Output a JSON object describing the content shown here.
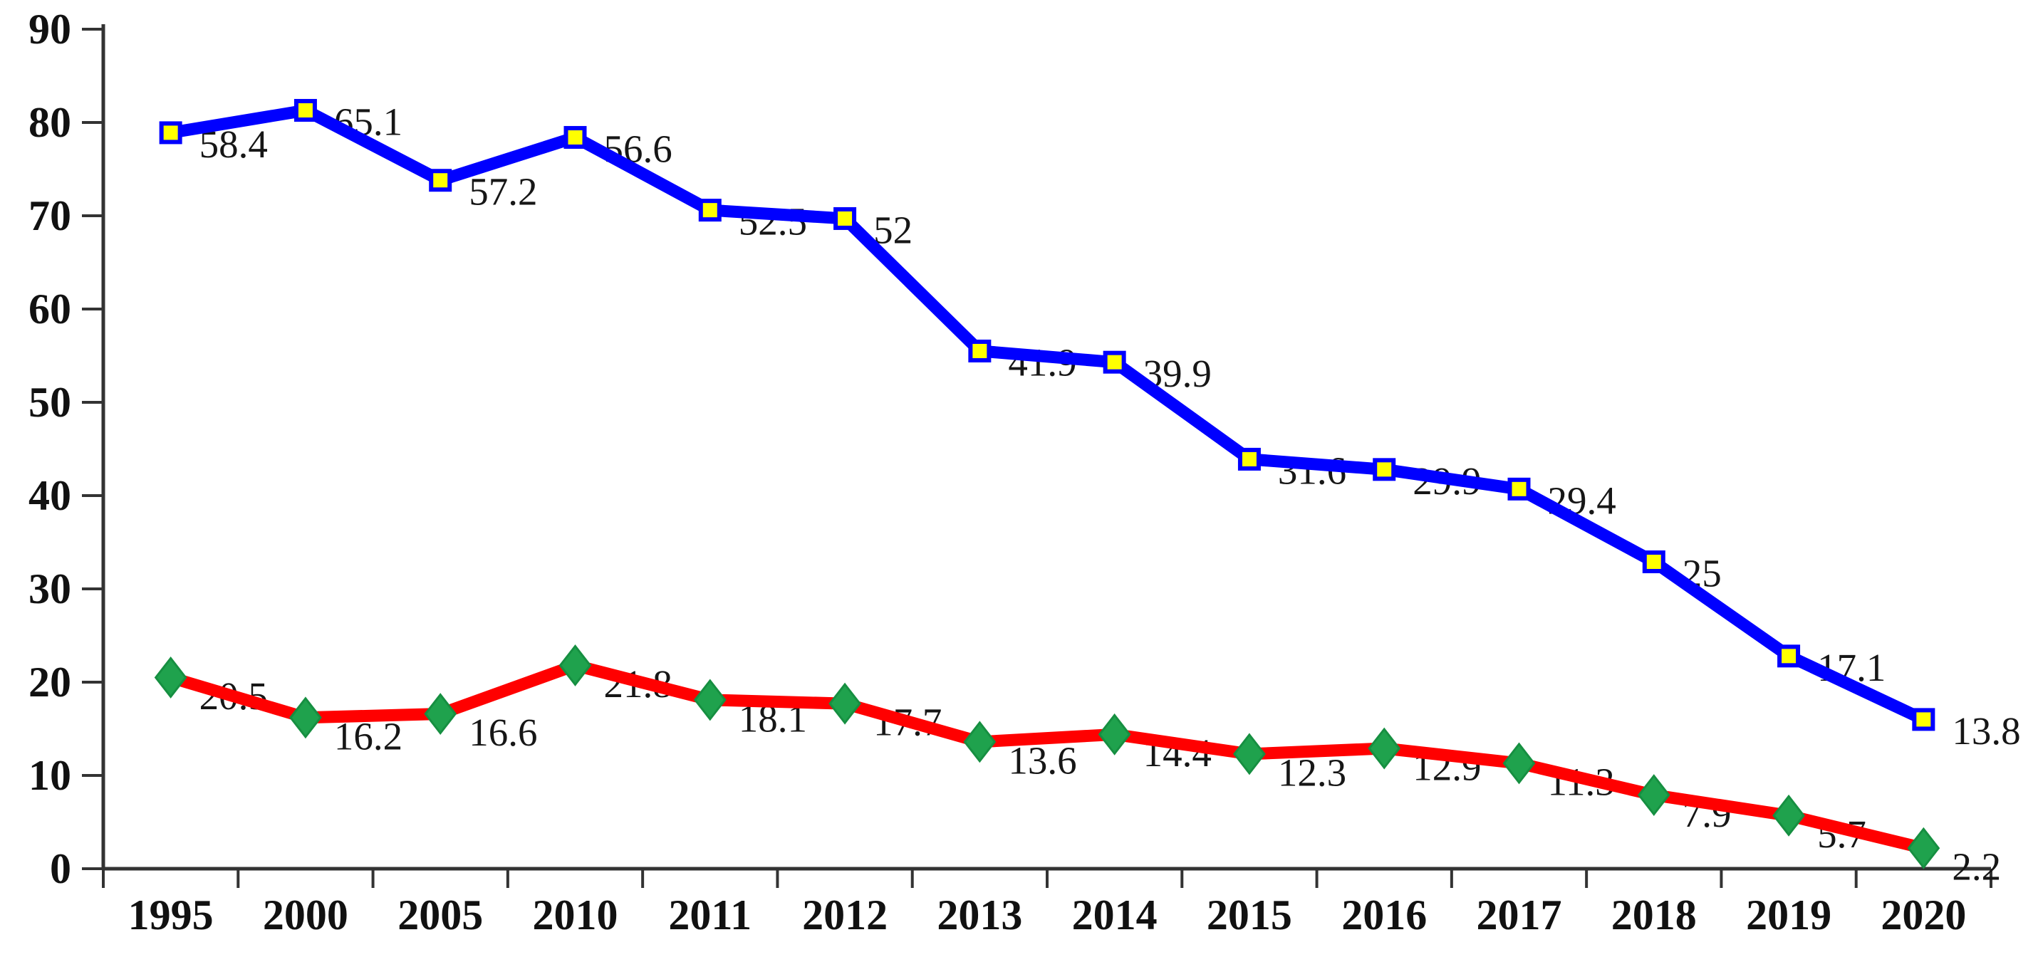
{
  "chart_data": {
    "type": "line",
    "variant": "stacked-line-with-markers-and-data-labels",
    "title": "",
    "xlabel": "",
    "ylabel": "",
    "categories": [
      "1995",
      "2000",
      "2005",
      "2010",
      "2011",
      "2012",
      "2013",
      "2014",
      "2015",
      "2016",
      "2017",
      "2018",
      "2019",
      "2020"
    ],
    "series": [
      {
        "name": "red-diamond-series",
        "line_color": "#FF0000",
        "marker": "diamond",
        "marker_color": "#1FA24D",
        "marker_edge_color": "#168F41",
        "values": [
          20.5,
          16.2,
          16.6,
          21.8,
          18.1,
          17.7,
          13.6,
          14.4,
          12.3,
          12.9,
          11.3,
          7.9,
          5.7,
          2.2
        ]
      },
      {
        "name": "blue-square-series",
        "line_color": "#0000FF",
        "marker": "square",
        "marker_color": "#FFFF00",
        "marker_edge_color": "#0000FF",
        "values": [
          58.4,
          65.1,
          57.2,
          56.6,
          52.5,
          52,
          41.9,
          39.9,
          31.6,
          29.9,
          29.4,
          25,
          17.1,
          13.8
        ]
      }
    ],
    "stacked": true,
    "data_labels": true,
    "ylim": [
      0,
      90
    ],
    "yticks": [
      0,
      10,
      20,
      30,
      40,
      50,
      60,
      70,
      80,
      90
    ],
    "grid": false,
    "legend": "none",
    "axis_color": "#333333",
    "text_color": "#111111",
    "background_color": "#FFFFFF"
  }
}
